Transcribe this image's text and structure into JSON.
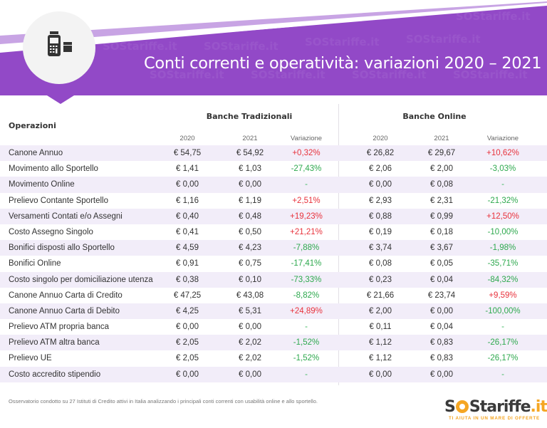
{
  "header": {
    "title": "Conti correnti e operatività: variazioni 2020 – 2021",
    "icon": "pos-terminal-icon",
    "watermark": "SOStariffe.it",
    "colors": {
      "banner": "#9249c7",
      "stripe": "#c8a4e4",
      "circle": "#f3f3f3"
    }
  },
  "table": {
    "operations_header": "Operazioni",
    "groups": [
      {
        "label": "Banche Tradizionali",
        "columns": [
          "2020",
          "2021",
          "Variazione"
        ]
      },
      {
        "label": "Banche Online",
        "columns": [
          "2020",
          "2021",
          "Variazione"
        ]
      }
    ],
    "rows": [
      {
        "label": "Canone Annuo",
        "trad": [
          "€ 54,75",
          "€ 54,92",
          "+0,32%"
        ],
        "online": [
          "€ 26,82",
          "€ 29,67",
          "+10,62%"
        ]
      },
      {
        "label": "Movimento allo Sportello",
        "trad": [
          "€ 1,41",
          "€ 1,03",
          "-27,43%"
        ],
        "online": [
          "€ 2,06",
          "€ 2,00",
          "-3,03%"
        ]
      },
      {
        "label": "Movimento Online",
        "trad": [
          "€ 0,00",
          "€ 0,00",
          "-"
        ],
        "online": [
          "€ 0,00",
          "€ 0,08",
          "-"
        ]
      },
      {
        "label": "Prelievo Contante Sportello",
        "trad": [
          "€ 1,16",
          "€ 1,19",
          "+2,51%"
        ],
        "online": [
          "€ 2,93",
          "€ 2,31",
          "-21,32%"
        ]
      },
      {
        "label": "Versamenti Contati e/o Assegni",
        "trad": [
          "€ 0,40",
          "€ 0,48",
          "+19,23%"
        ],
        "online": [
          "€ 0,88",
          "€ 0,99",
          "+12,50%"
        ]
      },
      {
        "label": "Costo Assegno Singolo",
        "trad": [
          "€ 0,41",
          "€ 0,50",
          "+21,21%"
        ],
        "online": [
          "€ 0,19",
          "€ 0,18",
          "-10,00%"
        ]
      },
      {
        "label": "Bonifici disposti allo Sportello",
        "trad": [
          "€ 4,59",
          "€ 4,23",
          "-7,88%"
        ],
        "online": [
          "€ 3,74",
          "€ 3,67",
          "-1,98%"
        ]
      },
      {
        "label": "Bonifici Online",
        "trad": [
          "€ 0,91",
          "€ 0,75",
          "-17,41%"
        ],
        "online": [
          "€ 0,08",
          "€ 0,05",
          "-35,71%"
        ]
      },
      {
        "label": "Costo singolo per domiciliazione utenza",
        "trad": [
          "€ 0,38",
          "€ 0,10",
          "-73,33%"
        ],
        "online": [
          "€ 0,23",
          "€ 0,04",
          "-84,32%"
        ]
      },
      {
        "label": "Canone Annuo Carta di Credito",
        "trad": [
          "€ 47,25",
          "€ 43,08",
          "-8,82%"
        ],
        "online": [
          "€ 21,66",
          "€ 23,74",
          "+9,59%"
        ]
      },
      {
        "label": "Canone Annuo Carta di Debito",
        "trad": [
          "€ 4,25",
          "€ 5,31",
          "+24,89%"
        ],
        "online": [
          "€ 2,00",
          "€ 0,00",
          "-100,00%"
        ]
      },
      {
        "label": "Prelievo ATM propria banca",
        "trad": [
          "€ 0,00",
          "€ 0,00",
          "-"
        ],
        "online": [
          "€ 0,11",
          "€ 0,04",
          "-"
        ]
      },
      {
        "label": "Prelievo ATM altra banca",
        "trad": [
          "€ 2,05",
          "€ 2,02",
          "-1,52%"
        ],
        "online": [
          "€ 1,12",
          "€ 0,83",
          "-26,17%"
        ]
      },
      {
        "label": "Prelievo UE",
        "trad": [
          "€ 2,05",
          "€ 2,02",
          "-1,52%"
        ],
        "online": [
          "€ 1,12",
          "€ 0,83",
          "-26,17%"
        ]
      },
      {
        "label": "Costo accredito stipendio",
        "trad": [
          "€ 0,00",
          "€ 0,00",
          "-"
        ],
        "online": [
          "€ 0,00",
          "€ 0,00",
          "-"
        ]
      }
    ],
    "colors": {
      "increase": "#e8323c",
      "decrease": "#2ea94e",
      "row_alt": "#f2edf9"
    }
  },
  "footer": {
    "note": "Osservatorio condotto su 27 Istituti di Credito attivi in Italia analizzando i principali conti correnti con usabilità online e allo sportello.",
    "logo": {
      "pre": "S",
      "post": "Stariffe",
      "tld": ".it",
      "tagline": "TI AIUTA IN UN MARE DI OFFERTE"
    }
  }
}
